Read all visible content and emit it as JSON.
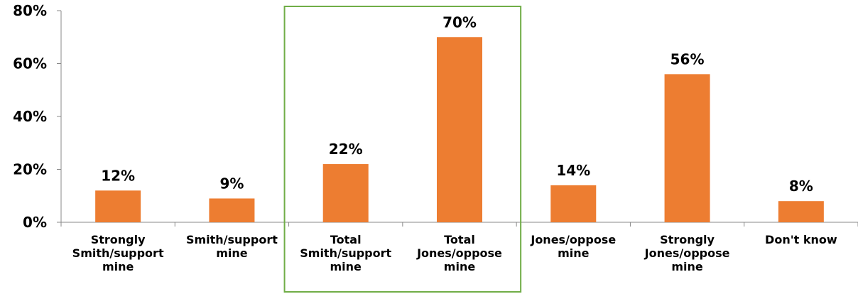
{
  "chart_data": {
    "type": "bar",
    "categories": [
      [
        "Strongly",
        "Smith/support",
        "mine"
      ],
      [
        "Smith/support",
        "mine"
      ],
      [
        "Total",
        "Smith/support",
        "mine"
      ],
      [
        "Total",
        "Jones/oppose",
        "mine"
      ],
      [
        "Jones/oppose",
        "mine"
      ],
      [
        "Strongly",
        "Jones/oppose",
        "mine"
      ],
      [
        "Don't know"
      ]
    ],
    "values": [
      12,
      9,
      22,
      70,
      14,
      56,
      8
    ],
    "data_labels": [
      "12%",
      "9%",
      "22%",
      "70%",
      "14%",
      "56%",
      "8%"
    ],
    "y_ticks": [
      0,
      20,
      40,
      60,
      80
    ],
    "y_tick_labels": [
      "0%",
      "20%",
      "40%",
      "60%",
      "80%"
    ],
    "ylim": [
      0,
      80
    ],
    "highlight_categories": [
      2,
      3
    ],
    "grid": false,
    "colors": {
      "bar": "#ED7D31",
      "axis": "#888888",
      "highlight_box": "#70AD47"
    }
  }
}
